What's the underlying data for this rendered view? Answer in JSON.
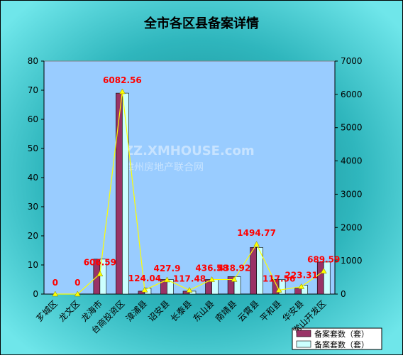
{
  "chart_data": {
    "type": "bar",
    "title": "全市各区县备案详情",
    "watermark": [
      "ZZ.XMHOUSE.com",
      "漳州房地产联合网"
    ],
    "categories": [
      "芗城区",
      "龙文区",
      "龙海市",
      "台商投资区",
      "漳浦县",
      "诏安县",
      "长泰县",
      "东山县",
      "南靖县",
      "云霄县",
      "平和县",
      "华安县",
      "常山开发区"
    ],
    "series": [
      {
        "name": "备案套数（套）",
        "color": "#993366",
        "values": [
          0,
          0,
          12,
          69,
          1,
          5,
          1,
          5,
          6,
          16,
          5,
          2,
          11
        ]
      },
      {
        "name": "备案套数（套）",
        "color": "#ccffff",
        "values": [
          0,
          0,
          12,
          69,
          2,
          5,
          1,
          5,
          6,
          16,
          5,
          3,
          11
        ]
      },
      {
        "type": "line",
        "axis": "y2",
        "color": "#ffff00",
        "label_color": "#ff0000",
        "values": [
          0,
          0,
          606.59,
          6082.56,
          124.04,
          427.9,
          117.48,
          436.58,
          438.92,
          1494.77,
          117.56,
          223.31,
          689.59
        ]
      }
    ],
    "ylim": [
      0,
      80
    ],
    "yticks": [
      0,
      10,
      20,
      30,
      40,
      50,
      60,
      70,
      80
    ],
    "y2lim": [
      0,
      7000
    ],
    "y2ticks": [
      0,
      1000,
      2000,
      3000,
      4000,
      5000,
      6000,
      7000
    ],
    "legend": "bottom-right"
  }
}
